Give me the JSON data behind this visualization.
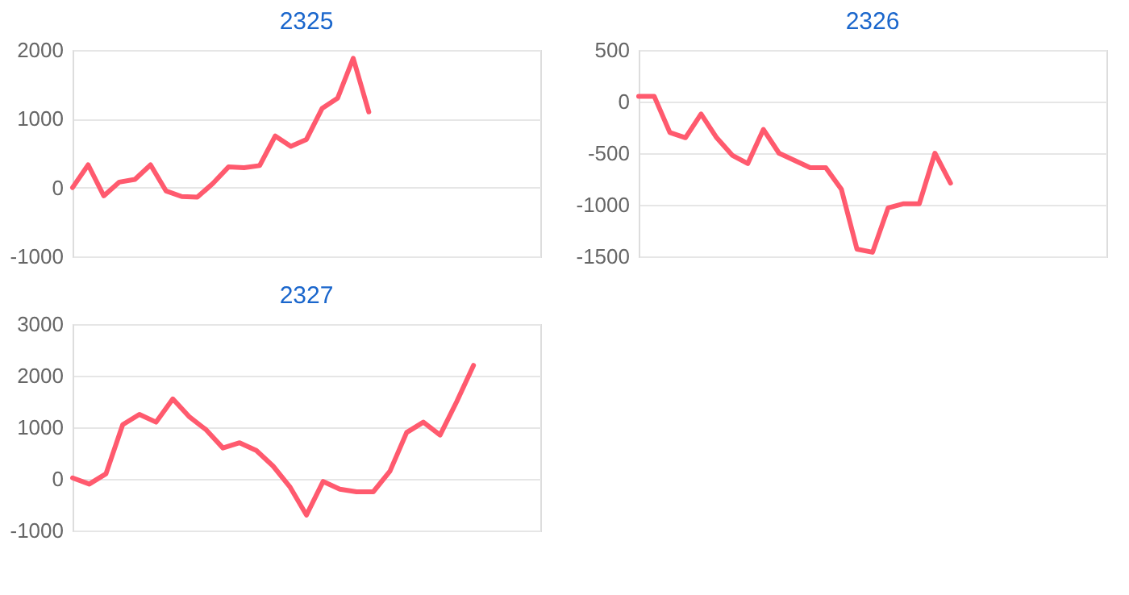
{
  "chart_data": [
    {
      "type": "line",
      "title": "2325",
      "categories": [
        null,
        null,
        null,
        null,
        null,
        null,
        null,
        null,
        null,
        null,
        null,
        null,
        null,
        null,
        null,
        null,
        null,
        null,
        null,
        null,
        null,
        null,
        null,
        null,
        null,
        null,
        null,
        null,
        null,
        null,
        null
      ],
      "series": [
        {
          "color": "#ff5a6e",
          "values": [
            0,
            330,
            -120,
            80,
            120,
            330,
            -50,
            -130,
            -140,
            60,
            300,
            290,
            320,
            750,
            600,
            700,
            1150,
            1300,
            1880,
            1100,
            null,
            null,
            null,
            null,
            null,
            null,
            null,
            null,
            null,
            null,
            null
          ]
        }
      ],
      "ylim": [
        -1000,
        2000
      ],
      "yticks": [
        -1000,
        0,
        1000,
        2000
      ],
      "grid": "y",
      "tick_labels": "y",
      "line_style": "solid",
      "marker": "none"
    },
    {
      "type": "line",
      "title": "2326",
      "categories": [
        null,
        null,
        null,
        null,
        null,
        null,
        null,
        null,
        null,
        null,
        null,
        null,
        null,
        null,
        null,
        null,
        null,
        null,
        null,
        null,
        null,
        null,
        null,
        null,
        null,
        null,
        null,
        null,
        null,
        null,
        null
      ],
      "series": [
        {
          "color": "#ff5a6e",
          "values": [
            50,
            50,
            -300,
            -350,
            -120,
            -350,
            -520,
            -600,
            -270,
            -500,
            -570,
            -640,
            -640,
            -850,
            -1430,
            -1460,
            -1030,
            -990,
            -990,
            -500,
            -790,
            null,
            null,
            null,
            null,
            null,
            null,
            null,
            null,
            null,
            null
          ]
        }
      ],
      "ylim": [
        -1500,
        500
      ],
      "yticks": [
        -1500,
        -1000,
        -500,
        0,
        500
      ],
      "grid": "y",
      "tick_labels": "y",
      "line_style": "solid",
      "marker": "none"
    },
    {
      "type": "line",
      "title": "2327",
      "categories": [
        null,
        null,
        null,
        null,
        null,
        null,
        null,
        null,
        null,
        null,
        null,
        null,
        null,
        null,
        null,
        null,
        null,
        null,
        null,
        null,
        null,
        null,
        null,
        null,
        null,
        null,
        null,
        null,
        null
      ],
      "series": [
        {
          "color": "#ff5a6e",
          "values": [
            20,
            -100,
            100,
            1050,
            1250,
            1100,
            1550,
            1200,
            950,
            600,
            700,
            550,
            250,
            -150,
            -700,
            -50,
            -200,
            -250,
            -250,
            150,
            900,
            1100,
            850,
            1500,
            2200,
            null,
            null,
            null,
            null
          ]
        }
      ],
      "ylim": [
        -1000,
        3000
      ],
      "yticks": [
        -1000,
        0,
        1000,
        2000,
        3000
      ],
      "grid": "y",
      "tick_labels": "y",
      "line_style": "solid",
      "marker": "none"
    }
  ]
}
